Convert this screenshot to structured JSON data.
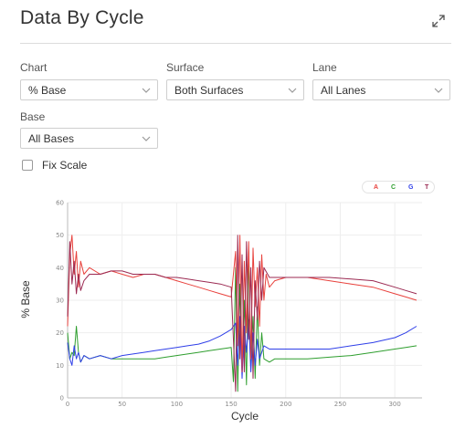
{
  "header": {
    "title": "Data By Cycle"
  },
  "controls": {
    "chart": {
      "label": "Chart",
      "value": "% Base"
    },
    "surface": {
      "label": "Surface",
      "value": "Both Surfaces"
    },
    "lane": {
      "label": "Lane",
      "value": "All Lanes"
    },
    "base": {
      "label": "Base",
      "value": "All Bases"
    },
    "fix_scale": {
      "label": "Fix Scale",
      "checked": false
    }
  },
  "legend": [
    {
      "name": "A",
      "color": "#e8413c"
    },
    {
      "name": "C",
      "color": "#2e9e2e"
    },
    {
      "name": "G",
      "color": "#2f3fe8"
    },
    {
      "name": "T",
      "color": "#9b2a52"
    }
  ],
  "chart_data": {
    "type": "line",
    "xlabel": "Cycle",
    "ylabel": "% Base",
    "xlim": [
      0,
      325
    ],
    "ylim": [
      0,
      60
    ],
    "xticks": [
      0,
      50,
      100,
      150,
      200,
      250,
      300
    ],
    "yticks": [
      0,
      10,
      20,
      30,
      40,
      50,
      60
    ],
    "grid": true,
    "legend_position": "top-right",
    "series": [
      {
        "name": "A",
        "color": "#e8413c",
        "points": [
          [
            0,
            22
          ],
          [
            2,
            44
          ],
          [
            4,
            50
          ],
          [
            6,
            38
          ],
          [
            8,
            45
          ],
          [
            10,
            34
          ],
          [
            12,
            42
          ],
          [
            15,
            38
          ],
          [
            20,
            40
          ],
          [
            30,
            38
          ],
          [
            40,
            39
          ],
          [
            50,
            38
          ],
          [
            60,
            37
          ],
          [
            70,
            38
          ],
          [
            80,
            38
          ],
          [
            90,
            37
          ],
          [
            100,
            36
          ],
          [
            110,
            35
          ],
          [
            120,
            34
          ],
          [
            130,
            33
          ],
          [
            140,
            32
          ],
          [
            150,
            31
          ],
          [
            154,
            45
          ],
          [
            156,
            16
          ],
          [
            158,
            50
          ],
          [
            160,
            8
          ],
          [
            162,
            42
          ],
          [
            164,
            20
          ],
          [
            166,
            48
          ],
          [
            168,
            12
          ],
          [
            170,
            46
          ],
          [
            172,
            28
          ],
          [
            174,
            40
          ],
          [
            176,
            22
          ],
          [
            178,
            44
          ],
          [
            180,
            30
          ],
          [
            182,
            38
          ],
          [
            185,
            34
          ],
          [
            190,
            36
          ],
          [
            200,
            37
          ],
          [
            220,
            37
          ],
          [
            240,
            36
          ],
          [
            260,
            35
          ],
          [
            280,
            34
          ],
          [
            300,
            32
          ],
          [
            310,
            31
          ],
          [
            320,
            30
          ]
        ]
      },
      {
        "name": "C",
        "color": "#2e9e2e",
        "points": [
          [
            0,
            20
          ],
          [
            2,
            12
          ],
          [
            4,
            14
          ],
          [
            6,
            13
          ],
          [
            8,
            22
          ],
          [
            10,
            14
          ],
          [
            12,
            11
          ],
          [
            15,
            13
          ],
          [
            20,
            12
          ],
          [
            30,
            13
          ],
          [
            40,
            12
          ],
          [
            50,
            12
          ],
          [
            60,
            12
          ],
          [
            70,
            12
          ],
          [
            80,
            12
          ],
          [
            90,
            12.5
          ],
          [
            100,
            13
          ],
          [
            110,
            13.5
          ],
          [
            120,
            14
          ],
          [
            130,
            14.5
          ],
          [
            140,
            15
          ],
          [
            150,
            15.5
          ],
          [
            152,
            5
          ],
          [
            154,
            40
          ],
          [
            156,
            2
          ],
          [
            158,
            35
          ],
          [
            160,
            8
          ],
          [
            162,
            30
          ],
          [
            164,
            4
          ],
          [
            166,
            45
          ],
          [
            168,
            10
          ],
          [
            170,
            25
          ],
          [
            172,
            6
          ],
          [
            174,
            28
          ],
          [
            176,
            10
          ],
          [
            178,
            20
          ],
          [
            180,
            12
          ],
          [
            185,
            11
          ],
          [
            190,
            12
          ],
          [
            200,
            12
          ],
          [
            220,
            12
          ],
          [
            240,
            12.5
          ],
          [
            260,
            13
          ],
          [
            280,
            14
          ],
          [
            300,
            15
          ],
          [
            310,
            15.5
          ],
          [
            320,
            16
          ]
        ]
      },
      {
        "name": "G",
        "color": "#2f3fe8",
        "points": [
          [
            0,
            17
          ],
          [
            2,
            12
          ],
          [
            4,
            10
          ],
          [
            6,
            16
          ],
          [
            8,
            12
          ],
          [
            10,
            14
          ],
          [
            12,
            11
          ],
          [
            15,
            13
          ],
          [
            20,
            12
          ],
          [
            30,
            13
          ],
          [
            40,
            12
          ],
          [
            50,
            13
          ],
          [
            60,
            13.5
          ],
          [
            70,
            14
          ],
          [
            80,
            14.5
          ],
          [
            90,
            15
          ],
          [
            100,
            15.5
          ],
          [
            110,
            16
          ],
          [
            120,
            16.5
          ],
          [
            130,
            17.5
          ],
          [
            140,
            19
          ],
          [
            150,
            21
          ],
          [
            154,
            23
          ],
          [
            156,
            10
          ],
          [
            158,
            25
          ],
          [
            160,
            6
          ],
          [
            162,
            22
          ],
          [
            164,
            14
          ],
          [
            166,
            24
          ],
          [
            168,
            8
          ],
          [
            170,
            20
          ],
          [
            172,
            10
          ],
          [
            174,
            18
          ],
          [
            176,
            12
          ],
          [
            180,
            16
          ],
          [
            185,
            15
          ],
          [
            190,
            15
          ],
          [
            200,
            15
          ],
          [
            220,
            15
          ],
          [
            240,
            15
          ],
          [
            260,
            16
          ],
          [
            280,
            17
          ],
          [
            300,
            18.5
          ],
          [
            310,
            20
          ],
          [
            320,
            22
          ]
        ]
      },
      {
        "name": "T",
        "color": "#9b2a52",
        "points": [
          [
            0,
            25
          ],
          [
            2,
            48
          ],
          [
            4,
            35
          ],
          [
            6,
            42
          ],
          [
            8,
            32
          ],
          [
            10,
            38
          ],
          [
            12,
            33
          ],
          [
            15,
            36
          ],
          [
            20,
            38
          ],
          [
            30,
            38
          ],
          [
            40,
            39
          ],
          [
            50,
            39
          ],
          [
            60,
            38
          ],
          [
            70,
            38
          ],
          [
            80,
            38
          ],
          [
            90,
            37
          ],
          [
            100,
            37
          ],
          [
            110,
            36.5
          ],
          [
            120,
            36
          ],
          [
            130,
            35.5
          ],
          [
            140,
            35
          ],
          [
            150,
            34
          ],
          [
            154,
            2
          ],
          [
            156,
            50
          ],
          [
            158,
            12
          ],
          [
            160,
            44
          ],
          [
            162,
            8
          ],
          [
            164,
            48
          ],
          [
            166,
            18
          ],
          [
            168,
            40
          ],
          [
            170,
            6
          ],
          [
            172,
            36
          ],
          [
            174,
            24
          ],
          [
            176,
            42
          ],
          [
            178,
            30
          ],
          [
            180,
            40
          ],
          [
            185,
            37
          ],
          [
            190,
            37
          ],
          [
            200,
            37
          ],
          [
            220,
            37
          ],
          [
            240,
            37
          ],
          [
            260,
            36.5
          ],
          [
            280,
            36
          ],
          [
            300,
            34
          ],
          [
            310,
            33
          ],
          [
            320,
            32
          ]
        ]
      }
    ]
  }
}
